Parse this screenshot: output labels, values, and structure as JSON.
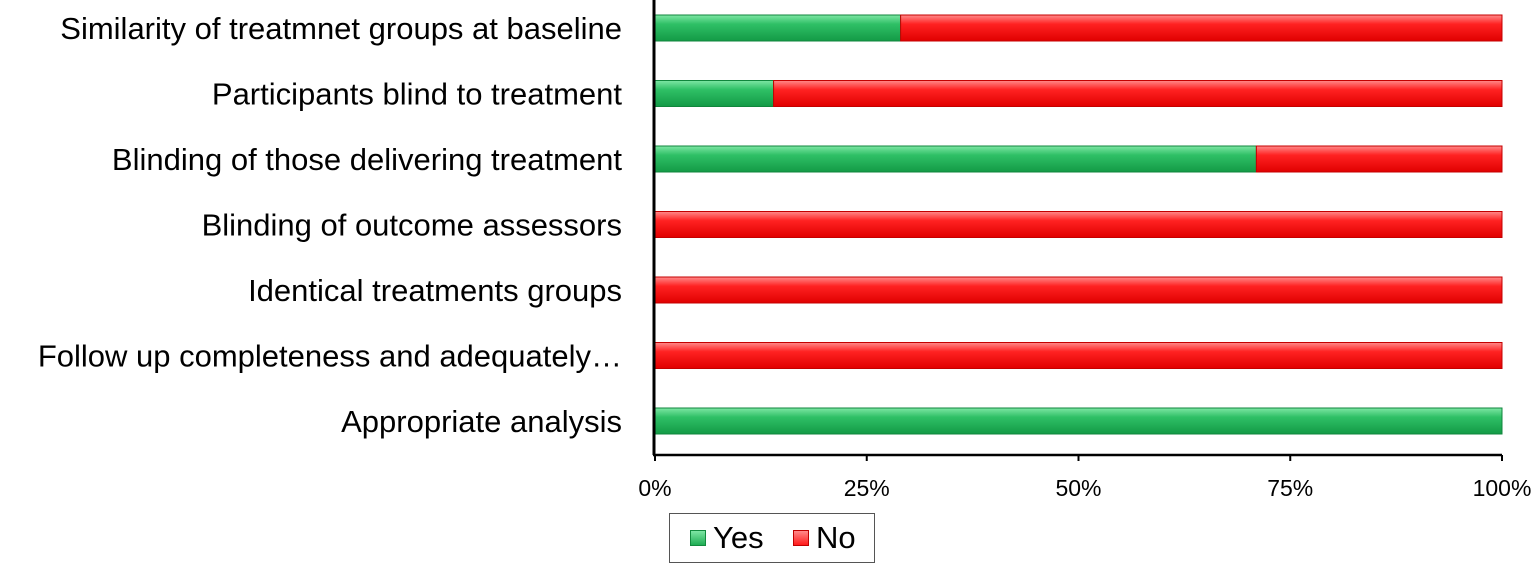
{
  "chart_data": {
    "type": "bar",
    "orientation": "horizontal",
    "stacked": "percent",
    "categories": [
      "Similarity of treatmnet groups at baseline",
      "Participants blind to treatment",
      "Blinding of those delivering treatment",
      "Blinding of outcome assessors",
      "Identical treatments groups",
      "Follow up completeness and adequately…",
      "Appropriate analysis"
    ],
    "series": [
      {
        "name": "Yes",
        "color": "#1fad54",
        "values": [
          29,
          14,
          71,
          0,
          0,
          0,
          100
        ]
      },
      {
        "name": "No",
        "color": "#ff1a1a",
        "values": [
          71,
          86,
          29,
          100,
          100,
          100,
          0
        ]
      }
    ],
    "xlim": [
      0,
      100
    ],
    "x_ticks": [
      "0%",
      "25%",
      "50%",
      "75%",
      "100%"
    ],
    "grid": false,
    "legend_position": "bottom",
    "title": "",
    "xlabel": "",
    "ylabel": ""
  },
  "legend": {
    "yes_label": "Yes",
    "no_label": "No"
  }
}
